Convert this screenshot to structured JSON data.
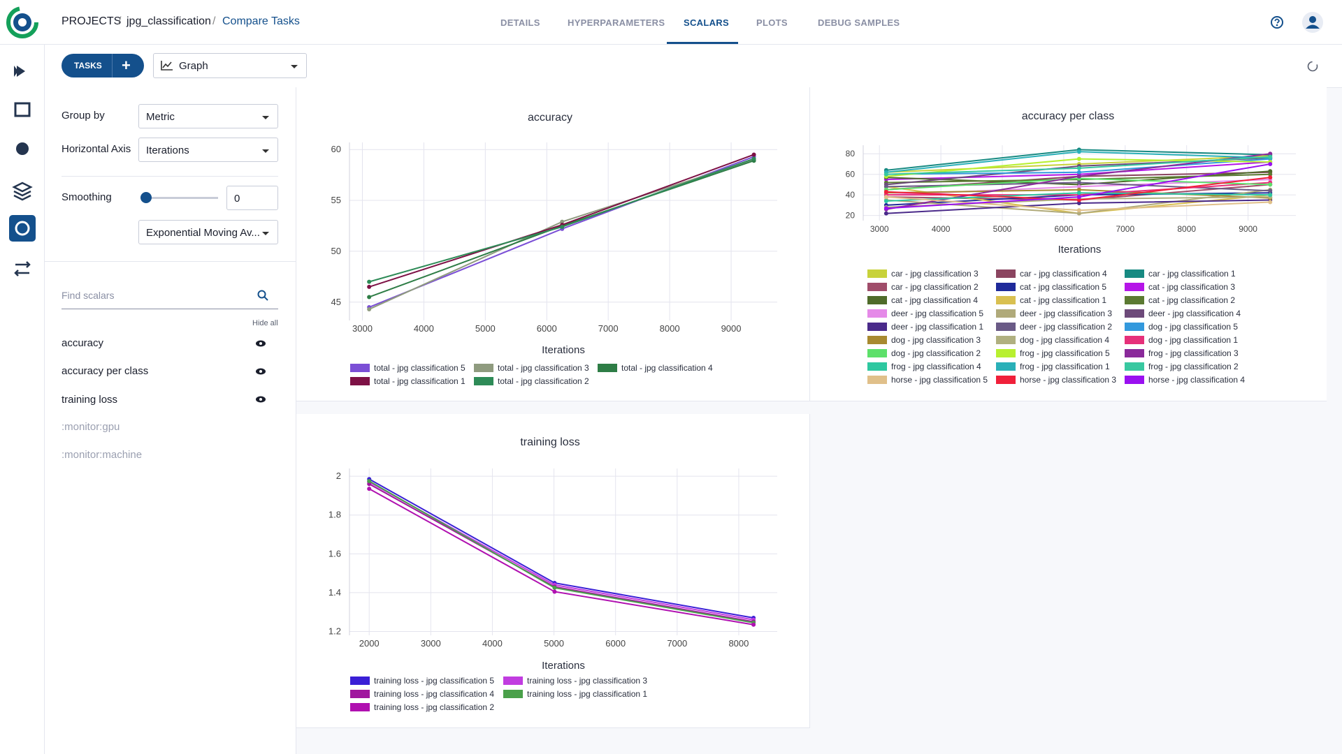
{
  "header": {
    "breadcrumb": [
      "PROJECTS",
      "jpg_classification",
      "Compare Tasks"
    ],
    "tabs": [
      "DETAILS",
      "HYPERPARAMETERS",
      "SCALARS",
      "PLOTS",
      "DEBUG SAMPLES"
    ]
  },
  "toolbar": {
    "tasks_button": "TASKS",
    "view": "Graph"
  },
  "sidebar": {
    "group_by_label": "Group by",
    "group_by_value": "Metric",
    "axis_label": "Horizontal Axis",
    "axis_value": "Iterations",
    "smoothing_label": "Smoothing",
    "smoothing_value": "0",
    "smoothing_method": "Exponential Moving Av...",
    "search_placeholder": "Find scalars",
    "hide_all": "Hide all",
    "scalars": [
      "accuracy",
      "accuracy per class",
      "training loss",
      ":monitor:gpu",
      ":monitor:machine"
    ]
  },
  "chart_data": [
    {
      "type": "line",
      "title": "accuracy",
      "x_label": "Iterations",
      "grid": true,
      "x": [
        3110,
        6250,
        9370
      ],
      "xlim": [
        2790,
        9750
      ],
      "xticks": [
        3000,
        4000,
        5000,
        6000,
        7000,
        8000,
        9000
      ],
      "ylim": [
        43.2,
        60.7
      ],
      "yticks": [
        45,
        50,
        55,
        60
      ],
      "series": [
        {
          "name": "total - jpg classification 5",
          "color": "#7b4fd6",
          "values": [
            44.5,
            52.2,
            59.3
          ]
        },
        {
          "name": "total - jpg classification 3",
          "color": "#8f9b7f",
          "values": [
            44.3,
            52.9,
            59.0
          ]
        },
        {
          "name": "total - jpg classification 4",
          "color": "#2e7d46",
          "values": [
            45.5,
            52.5,
            58.9
          ]
        },
        {
          "name": "total - jpg classification 1",
          "color": "#7d1145",
          "values": [
            46.5,
            52.6,
            59.5
          ]
        },
        {
          "name": "total - jpg classification 2",
          "color": "#2e8b57",
          "values": [
            47.0,
            52.4,
            59.1
          ]
        }
      ]
    },
    {
      "type": "line",
      "title": "accuracy per class",
      "x_label": "Iterations",
      "grid": true,
      "x": [
        3110,
        6250,
        9360
      ],
      "xlim": [
        2736,
        9778
      ],
      "xticks": [
        3000,
        4000,
        5000,
        6000,
        7000,
        8000,
        9000
      ],
      "ylim": [
        15,
        88.3
      ],
      "yticks": [
        20,
        40,
        60,
        80
      ],
      "series": [
        {
          "name": "car - jpg classification 3",
          "color": "#c8d23a",
          "values": [
            62,
            70,
            78
          ]
        },
        {
          "name": "car - jpg classification 4",
          "color": "#8b4560",
          "values": [
            45,
            58,
            62
          ]
        },
        {
          "name": "car - jpg classification 1",
          "color": "#178a82",
          "values": [
            64,
            84,
            79
          ]
        },
        {
          "name": "car - jpg classification 2",
          "color": "#a04d6a",
          "values": [
            38,
            35,
            50
          ]
        },
        {
          "name": "cat - jpg classification 5",
          "color": "#1f2a9a",
          "values": [
            30,
            40,
            42
          ]
        },
        {
          "name": "cat - jpg classification 3",
          "color": "#b515e8",
          "values": [
            55,
            60,
            72
          ]
        },
        {
          "name": "cat - jpg classification 4",
          "color": "#4f6b2a",
          "values": [
            57,
            50,
            63
          ]
        },
        {
          "name": "cat - jpg classification 1",
          "color": "#d9c050",
          "values": [
            48,
            22,
            40
          ]
        },
        {
          "name": "cat - jpg classification 2",
          "color": "#5b7a32",
          "values": [
            52,
            55,
            60
          ]
        },
        {
          "name": "deer - jpg classification 5",
          "color": "#e58ae8",
          "values": [
            40,
            48,
            55
          ]
        },
        {
          "name": "deer - jpg classification 3",
          "color": "#b0aa7a",
          "values": [
            35,
            22,
            45
          ]
        },
        {
          "name": "deer - jpg classification 4",
          "color": "#6d4a7a",
          "values": [
            50,
            68,
            76
          ]
        },
        {
          "name": "deer - jpg classification 1",
          "color": "#4a2a8a",
          "values": [
            22,
            32,
            35
          ]
        },
        {
          "name": "deer - jpg classification 2",
          "color": "#6a5a86",
          "values": [
            48,
            52,
            44
          ]
        },
        {
          "name": "dog - jpg classification 5",
          "color": "#3399dd",
          "values": [
            60,
            62,
            75
          ]
        },
        {
          "name": "dog - jpg classification 3",
          "color": "#a88a30",
          "values": [
            42,
            45,
            37
          ]
        },
        {
          "name": "dog - jpg classification 4",
          "color": "#b0b080",
          "values": [
            28,
            36,
            38
          ]
        },
        {
          "name": "dog - jpg classification 1",
          "color": "#e6307a",
          "values": [
            40,
            40,
            52
          ]
        },
        {
          "name": "dog - jpg classification 2",
          "color": "#5de06a",
          "values": [
            45,
            56,
            50
          ]
        },
        {
          "name": "frog - jpg classification 5",
          "color": "#b8f030",
          "values": [
            58,
            75,
            72
          ]
        },
        {
          "name": "frog - jpg classification 3",
          "color": "#8a2a9a",
          "values": [
            26,
            58,
            80
          ]
        },
        {
          "name": "frog - jpg classification 4",
          "color": "#2ec8a0",
          "values": [
            34,
            42,
            40
          ]
        },
        {
          "name": "frog - jpg classification 1",
          "color": "#2ab0b8",
          "values": [
            62,
            82,
            76
          ]
        },
        {
          "name": "frog - jpg classification 2",
          "color": "#38c8a0",
          "values": [
            60,
            66,
            77
          ]
        },
        {
          "name": "horse - jpg classification 5",
          "color": "#e0c08a",
          "values": [
            38,
            25,
            33
          ]
        },
        {
          "name": "horse - jpg classification 3",
          "color": "#f0203a",
          "values": [
            43,
            35,
            57
          ]
        },
        {
          "name": "horse - jpg classification 4",
          "color": "#9a10f0",
          "values": [
            27,
            38,
            70
          ]
        }
      ]
    },
    {
      "type": "line",
      "title": "training loss",
      "x_label": "Iterations",
      "grid": true,
      "x": [
        2000,
        5010,
        8240
      ],
      "xlim": [
        1680,
        8625
      ],
      "xticks": [
        2000,
        3000,
        4000,
        5000,
        6000,
        7000,
        8000
      ],
      "ylim": [
        1.18,
        2.04
      ],
      "yticks": [
        1.2,
        1.4,
        1.6,
        1.8,
        2
      ],
      "series": [
        {
          "name": "training loss - jpg classification 5",
          "color": "#3a1fd6",
          "values": [
            1.985,
            1.45,
            1.27
          ]
        },
        {
          "name": "training loss - jpg classification 3",
          "color": "#c13de0",
          "values": [
            1.97,
            1.44,
            1.26
          ]
        },
        {
          "name": "training loss - jpg classification 4",
          "color": "#a0169e",
          "values": [
            1.96,
            1.43,
            1.25
          ]
        },
        {
          "name": "training loss - jpg classification 1",
          "color": "#4aa04a",
          "values": [
            1.975,
            1.425,
            1.245
          ]
        },
        {
          "name": "training loss - jpg classification 2",
          "color": "#b010b0",
          "values": [
            1.935,
            1.405,
            1.235
          ]
        }
      ]
    }
  ]
}
